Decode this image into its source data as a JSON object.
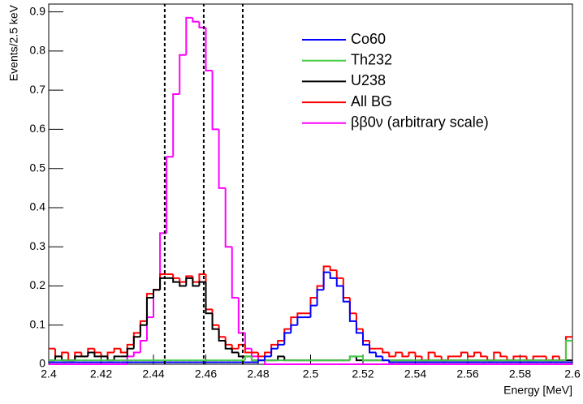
{
  "chart_data": {
    "type": "histogram",
    "xlabel": "Energy [MeV]",
    "ylabel": "Events/2.5 keV",
    "xlim": [
      2.4,
      2.6
    ],
    "ylim": [
      0,
      0.92
    ],
    "xticks": [
      2.4,
      2.42,
      2.44,
      2.46,
      2.48,
      2.5,
      2.52,
      2.54,
      2.56,
      2.58,
      2.6
    ],
    "yticks": [
      0,
      0.1,
      0.2,
      0.3,
      0.4,
      0.5,
      0.6,
      0.7,
      0.8,
      0.9
    ],
    "vlines": [
      2.4443,
      2.4592,
      2.4741
    ],
    "bins": [
      2.4,
      2.4025,
      2.405,
      2.4075,
      2.41,
      2.4125,
      2.415,
      2.4175,
      2.42,
      2.4225,
      2.425,
      2.4275,
      2.43,
      2.4325,
      2.435,
      2.4375,
      2.44,
      2.4425,
      2.445,
      2.4475,
      2.45,
      2.4525,
      2.455,
      2.4575,
      2.46,
      2.4625,
      2.465,
      2.4675,
      2.47,
      2.4725,
      2.475,
      2.4775,
      2.48,
      2.4825,
      2.485,
      2.4875,
      2.49,
      2.4925,
      2.495,
      2.4975,
      2.5,
      2.5025,
      2.505,
      2.5075,
      2.51,
      2.5125,
      2.515,
      2.5175,
      2.52,
      2.5225,
      2.525,
      2.5275,
      2.53,
      2.5325,
      2.535,
      2.5375,
      2.54,
      2.5425,
      2.545,
      2.5475,
      2.55,
      2.5525,
      2.555,
      2.5575,
      2.56,
      2.5625,
      2.565,
      2.5675,
      2.57,
      2.5725,
      2.575,
      2.5775,
      2.58,
      2.5825,
      2.585,
      2.5875,
      2.59,
      2.5925,
      2.595,
      2.5975,
      2.6
    ],
    "series": [
      {
        "name": "ββ0ν (arbitrary scale)",
        "color": "#ff00ff",
        "values": [
          0,
          0,
          0,
          0,
          0,
          0,
          0,
          0,
          0,
          0,
          0,
          0,
          0.02,
          0.03,
          0.06,
          0.12,
          0.19,
          0.335,
          0.53,
          0.69,
          0.79,
          0.885,
          0.875,
          0.86,
          0.75,
          0.6,
          0.45,
          0.3,
          0.17,
          0.08,
          0.04,
          0.02,
          0.01,
          0,
          0,
          0,
          0,
          0,
          0,
          0,
          0,
          0,
          0,
          0,
          0,
          0,
          0,
          0,
          0,
          0,
          0,
          0,
          0,
          0,
          0,
          0,
          0,
          0,
          0,
          0,
          0,
          0,
          0,
          0,
          0,
          0,
          0,
          0,
          0,
          0,
          0,
          0,
          0,
          0,
          0,
          0,
          0,
          0,
          0,
          0
        ]
      },
      {
        "name": "All BG",
        "color": "#ff0000",
        "values": [
          0.04,
          0.02,
          0.03,
          0.01,
          0.03,
          0.02,
          0.04,
          0.03,
          0.02,
          0.03,
          0.04,
          0.03,
          0.05,
          0.08,
          0.11,
          0.18,
          0.19,
          0.23,
          0.23,
          0.22,
          0.21,
          0.225,
          0.21,
          0.23,
          0.14,
          0.1,
          0.07,
          0.05,
          0.04,
          0.05,
          0.03,
          0.03,
          0.02,
          0.03,
          0.05,
          0.06,
          0.09,
          0.12,
          0.13,
          0.13,
          0.17,
          0.2,
          0.25,
          0.24,
          0.22,
          0.17,
          0.13,
          0.09,
          0.06,
          0.04,
          0.04,
          0.03,
          0.02,
          0.03,
          0.02,
          0.03,
          0.02,
          0.01,
          0.03,
          0.02,
          0.01,
          0.02,
          0.02,
          0.03,
          0.02,
          0.03,
          0.02,
          0.01,
          0.03,
          0.02,
          0.01,
          0.02,
          0.02,
          0.01,
          0.02,
          0.02,
          0.01,
          0.02,
          0.01,
          0.07
        ]
      },
      {
        "name": "U238",
        "color": "#000000",
        "values": [
          0.01,
          0.02,
          0.01,
          0.01,
          0.02,
          0.02,
          0.03,
          0.02,
          0.02,
          0.01,
          0.02,
          0.02,
          0.04,
          0.07,
          0.1,
          0.17,
          0.19,
          0.22,
          0.22,
          0.21,
          0.2,
          0.22,
          0.2,
          0.21,
          0.13,
          0.09,
          0.06,
          0.04,
          0.03,
          0.02,
          0.02,
          0.01,
          0.01,
          0.01,
          0.01,
          0.02,
          0.01,
          0.01,
          0.01,
          0.01,
          0.01,
          0.01,
          0.01,
          0.01,
          0.01,
          0.01,
          0.02,
          0.01,
          0.01,
          0.01,
          0.01,
          0.01,
          0.01,
          0.01,
          0.01,
          0.01,
          0.01,
          0.01,
          0.01,
          0.01,
          0.01,
          0.01,
          0.01,
          0.01,
          0.01,
          0.01,
          0.01,
          0.01,
          0.01,
          0.01,
          0.01,
          0.01,
          0.01,
          0.01,
          0.01,
          0.01,
          0.01,
          0.01,
          0.01,
          0.01
        ]
      },
      {
        "name": "Th232",
        "color": "#44cc44",
        "values": [
          0.01,
          0.01,
          0.01,
          0.01,
          0.01,
          0.01,
          0.01,
          0.01,
          0.01,
          0.01,
          0.01,
          0.01,
          0.01,
          0.01,
          0.01,
          0.01,
          0.01,
          0.01,
          0.01,
          0.01,
          0.01,
          0.01,
          0.01,
          0.01,
          0.01,
          0.01,
          0.01,
          0.01,
          0.01,
          0.01,
          0.02,
          0.01,
          0.01,
          0.01,
          0.01,
          0.01,
          0.01,
          0.01,
          0.01,
          0.01,
          0.01,
          0.01,
          0.01,
          0.01,
          0.01,
          0.01,
          0.02,
          0.02,
          0.01,
          0.01,
          0.01,
          0.01,
          0.01,
          0.01,
          0.01,
          0.01,
          0.01,
          0.01,
          0.01,
          0.01,
          0.01,
          0.01,
          0.01,
          0.01,
          0.01,
          0.01,
          0.01,
          0.01,
          0.01,
          0.01,
          0.01,
          0.01,
          0.01,
          0.01,
          0.01,
          0.01,
          0.01,
          0.01,
          0.01,
          0.06
        ]
      },
      {
        "name": "Co60",
        "color": "#0000ff",
        "values": [
          0.005,
          0.005,
          0.005,
          0.005,
          0.005,
          0.005,
          0.005,
          0.005,
          0.005,
          0.005,
          0.005,
          0.005,
          0.005,
          0.005,
          0.005,
          0.005,
          0.005,
          0.005,
          0.005,
          0.005,
          0.005,
          0.005,
          0.005,
          0.005,
          0.005,
          0.005,
          0.005,
          0.005,
          0.005,
          0.005,
          0.005,
          0.005,
          0.01,
          0.02,
          0.04,
          0.05,
          0.08,
          0.1,
          0.12,
          0.12,
          0.15,
          0.19,
          0.235,
          0.22,
          0.2,
          0.16,
          0.11,
          0.08,
          0.05,
          0.03,
          0.02,
          0.01,
          0.005,
          0.005,
          0.005,
          0.005,
          0.005,
          0.005,
          0.005,
          0.005,
          0.005,
          0.005,
          0.005,
          0.005,
          0.005,
          0.005,
          0.005,
          0.005,
          0.005,
          0.005,
          0.005,
          0.005,
          0.005,
          0.005,
          0.005,
          0.005,
          0.005,
          0.005,
          0.005,
          0.005
        ]
      }
    ],
    "legend_order": [
      "Co60",
      "Th232",
      "U238",
      "All BG",
      "ββ0ν (arbitrary scale)"
    ]
  }
}
